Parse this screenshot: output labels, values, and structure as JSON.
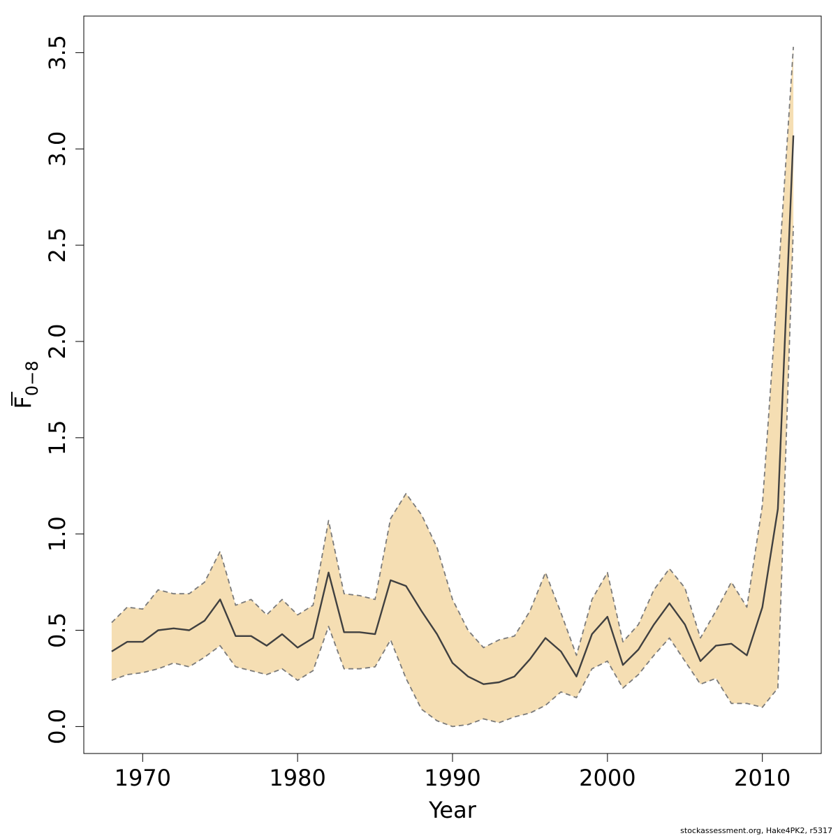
{
  "chart_data": {
    "type": "area",
    "xlabel": "Year",
    "ylabel": {
      "base": "F",
      "subscript": "0−8",
      "overline": true
    },
    "xlim": [
      1966.2,
      2013.8
    ],
    "ylim": [
      -0.14,
      3.69
    ],
    "x_ticks": [
      1970,
      1980,
      1990,
      2000,
      2010
    ],
    "y_ticks": [
      0.0,
      0.5,
      1.0,
      1.5,
      2.0,
      2.5,
      3.0,
      3.5
    ],
    "x_tick_labels": [
      "1970",
      "1980",
      "1990",
      "2000",
      "2010"
    ],
    "y_tick_labels": [
      "0.0",
      "0.5",
      "1.0",
      "1.5",
      "2.0",
      "2.5",
      "3.0",
      "3.5"
    ],
    "band_color": "#F5DEB3",
    "line_color": "#404040",
    "bound_color": "#7a7a7a",
    "grid": false,
    "x": [
      1968,
      1969,
      1970,
      1971,
      1972,
      1973,
      1974,
      1975,
      1976,
      1977,
      1978,
      1979,
      1980,
      1981,
      1982,
      1983,
      1984,
      1985,
      1986,
      1987,
      1988,
      1989,
      1990,
      1991,
      1992,
      1993,
      1994,
      1995,
      1996,
      1997,
      1998,
      1999,
      2000,
      2001,
      2002,
      2003,
      2004,
      2005,
      2006,
      2007,
      2008,
      2009,
      2010,
      2011,
      2012
    ],
    "series": [
      {
        "name": "",
        "role": "estimate",
        "values": [
          0.39,
          0.44,
          0.44,
          0.5,
          0.51,
          0.5,
          0.55,
          0.66,
          0.47,
          0.47,
          0.42,
          0.48,
          0.41,
          0.46,
          0.8,
          0.49,
          0.49,
          0.48,
          0.76,
          0.73,
          0.6,
          0.48,
          0.33,
          0.26,
          0.22,
          0.23,
          0.26,
          0.35,
          0.46,
          0.39,
          0.26,
          0.48,
          0.57,
          0.32,
          0.4,
          0.53,
          0.64,
          0.53,
          0.34,
          0.42,
          0.43,
          0.37,
          0.62,
          1.13,
          3.07
        ]
      },
      {
        "name": "",
        "role": "upper",
        "values": [
          0.54,
          0.62,
          0.61,
          0.71,
          0.69,
          0.69,
          0.75,
          0.91,
          0.63,
          0.66,
          0.58,
          0.66,
          0.58,
          0.63,
          1.07,
          0.69,
          0.68,
          0.66,
          1.08,
          1.21,
          1.1,
          0.93,
          0.66,
          0.5,
          0.41,
          0.45,
          0.47,
          0.6,
          0.8,
          0.59,
          0.37,
          0.66,
          0.8,
          0.44,
          0.53,
          0.71,
          0.82,
          0.72,
          0.46,
          0.6,
          0.75,
          0.62,
          1.15,
          2.3,
          3.53
        ]
      },
      {
        "name": "",
        "role": "lower",
        "values": [
          0.24,
          0.27,
          0.28,
          0.3,
          0.33,
          0.31,
          0.36,
          0.42,
          0.31,
          0.29,
          0.27,
          0.3,
          0.24,
          0.29,
          0.52,
          0.3,
          0.3,
          0.31,
          0.45,
          0.25,
          0.09,
          0.03,
          0.0,
          0.01,
          0.04,
          0.02,
          0.05,
          0.07,
          0.11,
          0.18,
          0.15,
          0.3,
          0.34,
          0.2,
          0.27,
          0.37,
          0.46,
          0.34,
          0.22,
          0.25,
          0.12,
          0.12,
          0.1,
          0.2,
          2.6
        ]
      }
    ]
  },
  "footer": {
    "credit": "stockassessment.org, Hake4PK2, r5317"
  }
}
